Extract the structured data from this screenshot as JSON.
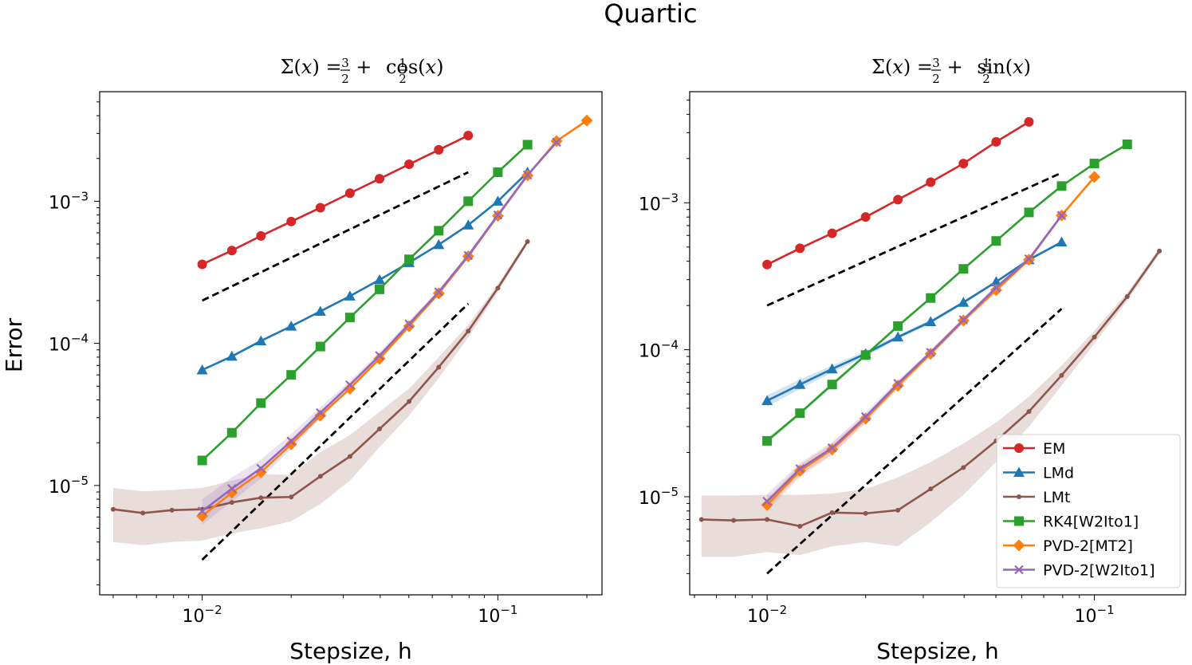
{
  "suptitle": "Quartic",
  "ylabel": "Error",
  "colors": {
    "EM": "#d62728",
    "LMd": "#1f77b4",
    "LMt": "#8c564b",
    "RK4[W2Ito1]": "#2ca02c",
    "PVD-2[MT2]": "#ff7f0e",
    "PVD-2[W2Ito1]": "#9467bd",
    "reference": "#000000"
  },
  "legend": {
    "placement": "lower right (right panel)",
    "entries": [
      "EM",
      "LMd",
      "LMt",
      "RK4[W2Ito1]",
      "PVD-2[MT2]",
      "PVD-2[W2Ito1]"
    ]
  },
  "chart_data": [
    {
      "type": "line",
      "title": "Σ(x) = 3/2 + 1/2 cos(x)",
      "title_parts": {
        "lhs": "Σ(",
        "var": "x",
        "eq": ") = ",
        "n1": "3",
        "d1": "2",
        "plus": " + ",
        "n2": "1",
        "d2": "2",
        "func": "cos(",
        "end": ")"
      },
      "xlabel": "Stepsize, h",
      "ylabel": "Error",
      "xscale": "log",
      "yscale": "log",
      "xlim": [
        0.0045,
        0.225
      ],
      "ylim": [
        1.7e-06,
        0.0059
      ],
      "xticks": [
        {
          "base": "10",
          "exp": "−2",
          "value": 0.01
        },
        {
          "base": "10",
          "exp": "−1",
          "value": 0.1
        }
      ],
      "yticks": [
        {
          "base": "10",
          "exp": "−5",
          "value": 1e-05
        },
        {
          "base": "10",
          "exp": "−4",
          "value": 0.0001
        },
        {
          "base": "10",
          "exp": "−3",
          "value": 0.001
        }
      ],
      "series": [
        {
          "name": "EM",
          "marker": "circle",
          "x": [
            0.01,
            0.0126,
            0.0158,
            0.02,
            0.0251,
            0.0316,
            0.0398,
            0.0501,
            0.0631,
            0.0794
          ],
          "y": [
            0.00036,
            0.00045,
            0.00057,
            0.00072,
            0.0009,
            0.00114,
            0.00144,
            0.00182,
            0.0023,
            0.0029
          ]
        },
        {
          "name": "LMd",
          "marker": "triangle",
          "x": [
            0.01,
            0.0126,
            0.0158,
            0.02,
            0.0251,
            0.0316,
            0.0398,
            0.0501,
            0.0631,
            0.0794,
            0.1,
            0.126
          ],
          "y": [
            6.5e-05,
            8.1e-05,
            0.000104,
            0.000132,
            0.000168,
            0.000215,
            0.00028,
            0.00037,
            0.000495,
            0.00068,
            0.001,
            0.0016
          ]
        },
        {
          "name": "LMt",
          "marker": "point",
          "x": [
            0.005,
            0.0063,
            0.0079,
            0.01,
            0.0126,
            0.0158,
            0.02,
            0.0251,
            0.0316,
            0.0398,
            0.0501,
            0.0631,
            0.0794,
            0.1,
            0.126
          ],
          "y": [
            6.8e-06,
            6.4e-06,
            6.7e-06,
            6.8e-06,
            7.6e-06,
            8.2e-06,
            8.3e-06,
            1.16e-05,
            1.6e-05,
            2.5e-05,
            3.9e-05,
            6.8e-05,
            0.000122,
            0.000245,
            0.00052
          ],
          "band_low": [
            4e-06,
            3.8e-06,
            4e-06,
            4.1e-06,
            4.6e-06,
            5e-06,
            5.6e-06,
            7.4e-06,
            1.08e-05,
            1.86e-05,
            3.1e-05,
            5.7e-05,
            0.00011,
            0.00023,
            0.0005
          ],
          "band_high": [
            9.6e-06,
            9.1e-06,
            9.3e-06,
            9.6e-06,
            1.08e-05,
            1.2e-05,
            1.19e-05,
            1.72e-05,
            2.26e-05,
            3.3e-05,
            4.8e-05,
            8e-05,
            0.000135,
            0.00026,
            0.00054
          ]
        },
        {
          "name": "RK4[W2Ito1]",
          "marker": "square",
          "x": [
            0.01,
            0.0126,
            0.0158,
            0.02,
            0.0251,
            0.0316,
            0.0398,
            0.0501,
            0.0631,
            0.0794,
            0.1,
            0.126
          ],
          "y": [
            1.5e-05,
            2.35e-05,
            3.8e-05,
            6e-05,
            9.5e-05,
            0.000152,
            0.00024,
            0.00039,
            0.00062,
            0.001,
            0.0016,
            0.0025
          ]
        },
        {
          "name": "PVD-2[MT2]",
          "marker": "diamond",
          "x": [
            0.01,
            0.0126,
            0.0158,
            0.02,
            0.0251,
            0.0316,
            0.0398,
            0.0501,
            0.0631,
            0.0794,
            0.1,
            0.126,
            0.158,
            0.2
          ],
          "y": [
            6.1e-06,
            8.9e-06,
            1.24e-05,
            1.95e-05,
            3.1e-05,
            4.8e-05,
            7.8e-05,
            0.000132,
            0.000225,
            0.00041,
            0.00079,
            0.00152,
            0.00265,
            0.0037
          ]
        },
        {
          "name": "PVD-2[W2Ito1]",
          "marker": "x",
          "x": [
            0.01,
            0.0126,
            0.0158,
            0.02,
            0.0251,
            0.0316,
            0.0398,
            0.0501,
            0.0631,
            0.0794,
            0.1,
            0.126,
            0.158
          ],
          "y": [
            6.6e-06,
            9.5e-06,
            1.32e-05,
            2.05e-05,
            3.25e-05,
            5.1e-05,
            8.2e-05,
            0.000137,
            0.00023,
            0.000415,
            0.0008,
            0.00153,
            0.0026
          ],
          "band_low": [
            5.3e-06,
            7.7e-06,
            1.12e-05,
            1.8e-05,
            2.95e-05,
            4.75e-05,
            7.7e-05,
            0.00013,
            0.00022,
            0.0004,
            0.00078,
            0.0015,
            0.00255
          ],
          "band_high": [
            8e-06,
            1.14e-05,
            1.52e-05,
            2.3e-05,
            3.55e-05,
            5.45e-05,
            8.7e-05,
            0.000144,
            0.00024,
            0.00043,
            0.00082,
            0.00156,
            0.00265
          ]
        }
      ],
      "reference_lines": [
        {
          "style": "dashed",
          "x": [
            0.01,
            0.0794
          ],
          "y": [
            0.0002,
            0.0016
          ]
        },
        {
          "style": "dashed",
          "x": [
            0.01,
            0.0794
          ],
          "y": [
            3e-06,
            0.00019
          ]
        }
      ]
    },
    {
      "type": "line",
      "title": "Σ(x) = 3/2 + 1/2 sin(x)",
      "title_parts": {
        "lhs": "Σ(",
        "var": "x",
        "eq": ") = ",
        "n1": "3",
        "d1": "2",
        "plus": " + ",
        "n2": "1",
        "d2": "2",
        "func": "sin(",
        "end": ")"
      },
      "xlabel": "Stepsize, h",
      "xscale": "log",
      "yscale": "log",
      "xlim": [
        0.0058,
        0.19
      ],
      "ylim": [
        2.15e-06,
        0.0057
      ],
      "xticks": [
        {
          "base": "10",
          "exp": "−2",
          "value": 0.01
        },
        {
          "base": "10",
          "exp": "−1",
          "value": 0.1
        }
      ],
      "yticks": [
        {
          "base": "10",
          "exp": "−5",
          "value": 1e-05
        },
        {
          "base": "10",
          "exp": "−4",
          "value": 0.0001
        },
        {
          "base": "10",
          "exp": "−3",
          "value": 0.001
        }
      ],
      "series": [
        {
          "name": "EM",
          "marker": "circle",
          "x": [
            0.01,
            0.0126,
            0.0158,
            0.02,
            0.0251,
            0.0316,
            0.0398,
            0.0501,
            0.0631
          ],
          "y": [
            0.00038,
            0.00049,
            0.00062,
            0.0008,
            0.00105,
            0.00138,
            0.00185,
            0.0026,
            0.00355
          ]
        },
        {
          "name": "LMd",
          "marker": "triangle",
          "x": [
            0.01,
            0.0126,
            0.0158,
            0.02,
            0.0251,
            0.0316,
            0.0398,
            0.0501,
            0.0631,
            0.0794
          ],
          "y": [
            4.5e-05,
            5.8e-05,
            7.4e-05,
            9.4e-05,
            0.000122,
            0.000155,
            0.00021,
            0.00029,
            0.00041,
            0.00054
          ],
          "band_low": [
            4.1e-05,
            5.4e-05,
            7e-05,
            9e-05,
            0.000118,
            0.00015,
            0.000205,
            0.000285,
            0.0004,
            0.00053
          ],
          "band_high": [
            4.9e-05,
            6.3e-05,
            7.8e-05,
            9.8e-05,
            0.000126,
            0.00016,
            0.000215,
            0.000295,
            0.00042,
            0.00055
          ]
        },
        {
          "name": "LMt",
          "marker": "point",
          "x": [
            0.0063,
            0.0079,
            0.01,
            0.0126,
            0.0158,
            0.02,
            0.0251,
            0.0316,
            0.0398,
            0.0501,
            0.0631,
            0.0794,
            0.1,
            0.126,
            0.158
          ],
          "y": [
            7e-06,
            6.9e-06,
            7e-06,
            6.3e-06,
            7.8e-06,
            7.7e-06,
            8.1e-06,
            1.13e-05,
            1.58e-05,
            2.4e-05,
            3.8e-05,
            6.7e-05,
            0.000122,
            0.00023,
            0.00047
          ],
          "band_low": [
            3.9e-06,
            3.9e-06,
            4.2e-06,
            4e-06,
            4.6e-06,
            4.9e-06,
            4.6e-06,
            6.7e-06,
            1.03e-05,
            1.73e-05,
            3e-05,
            5.7e-05,
            0.00011,
            0.000215,
            0.00045
          ],
          "band_high": [
            1.02e-05,
            1.02e-05,
            1.03e-05,
            1.03e-05,
            1.05e-05,
            1.13e-05,
            1.35e-05,
            1.72e-05,
            2.3e-05,
            3.2e-05,
            4.8e-05,
            7.8e-05,
            0.000135,
            0.000245,
            0.00049
          ]
        },
        {
          "name": "RK4[W2Ito1]",
          "marker": "square",
          "x": [
            0.01,
            0.0126,
            0.0158,
            0.02,
            0.0251,
            0.0316,
            0.0398,
            0.0501,
            0.0631,
            0.0794,
            0.1,
            0.126
          ],
          "y": [
            2.4e-05,
            3.7e-05,
            5.8e-05,
            9.2e-05,
            0.000145,
            0.000225,
            0.000355,
            0.00055,
            0.00086,
            0.0013,
            0.00185,
            0.0025
          ],
          "band_low": [
            2.3e-05,
            3.6e-05,
            5.6e-05,
            9e-05,
            0.000142,
            0.00022,
            0.00035,
            0.00054,
            0.00085,
            0.00128,
            0.00183,
            0.00248
          ],
          "band_high": [
            2.5e-05,
            3.8e-05,
            6e-05,
            9.4e-05,
            0.000148,
            0.00023,
            0.00036,
            0.00056,
            0.00087,
            0.00132,
            0.00187,
            0.00252
          ]
        },
        {
          "name": "PVD-2[MT2]",
          "marker": "diamond",
          "x": [
            0.01,
            0.0126,
            0.0158,
            0.02,
            0.0251,
            0.0316,
            0.0398,
            0.0501,
            0.0631,
            0.0794,
            0.1
          ],
          "y": [
            8.8e-06,
            1.5e-05,
            2.1e-05,
            3.4e-05,
            5.7e-05,
            9.4e-05,
            0.000158,
            0.000255,
            0.00041,
            0.00082,
            0.0015
          ],
          "band_low": [
            8e-06,
            1.36e-05,
            1.92e-05,
            3.2e-05,
            5.4e-05,
            9e-05,
            0.000152,
            0.000245,
            0.0004,
            0.0008,
            0.00148
          ],
          "band_high": [
            9.7e-06,
            1.65e-05,
            2.3e-05,
            3.6e-05,
            6e-05,
            9.8e-05,
            0.000164,
            0.000265,
            0.00042,
            0.00084,
            0.00152
          ]
        },
        {
          "name": "PVD-2[W2Ito1]",
          "marker": "x",
          "x": [
            0.01,
            0.0126,
            0.0158,
            0.02,
            0.0251,
            0.0316,
            0.0398,
            0.0501,
            0.0631,
            0.0794
          ],
          "y": [
            9.3e-06,
            1.55e-05,
            2.15e-05,
            3.5e-05,
            5.9e-05,
            9.6e-05,
            0.00016,
            0.000265,
            0.000415,
            0.00082
          ],
          "band_low": [
            8.3e-06,
            1.4e-05,
            1.95e-05,
            3.25e-05,
            5.6e-05,
            9.2e-05,
            0.000154,
            0.000255,
            0.000405,
            0.0008
          ],
          "band_high": [
            1.04e-05,
            1.7e-05,
            2.35e-05,
            3.75e-05,
            6.2e-05,
            0.0001,
            0.000166,
            0.000275,
            0.000425,
            0.00084
          ]
        }
      ],
      "reference_lines": [
        {
          "style": "dashed",
          "x": [
            0.01,
            0.0794
          ],
          "y": [
            0.0002,
            0.0016
          ]
        },
        {
          "style": "dashed",
          "x": [
            0.01,
            0.0794
          ],
          "y": [
            3e-06,
            0.00019
          ]
        }
      ]
    }
  ]
}
